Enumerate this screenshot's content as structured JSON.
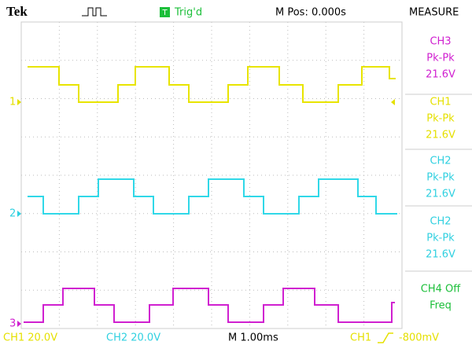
{
  "header": {
    "brand": "Tek",
    "trigger_icon": "T",
    "trigger_status": "Trig'd",
    "position": "M Pos: 0.000s",
    "menu_title": "MEASURE"
  },
  "channel_markers": [
    "1",
    "2",
    "3"
  ],
  "measurements": [
    {
      "channel": "CH3",
      "label": "Pk-Pk",
      "value": "21.6V"
    },
    {
      "channel": "CH1",
      "label": "Pk-Pk",
      "value": "21.6V"
    },
    {
      "channel": "CH2",
      "label": "Pk-Pk",
      "value": "21.6V"
    },
    {
      "channel": "CH2",
      "label": "Pk-Pk",
      "value": "21.6V"
    },
    {
      "channel": "CH4 Off",
      "label": "Freq"
    }
  ],
  "footer": {
    "ch1": "CH1  20.0V",
    "ch2": "CH2  20.0V",
    "timebase": "M 1.00ms",
    "trigger_source": "CH1",
    "trigger_level": "-800mV"
  }
}
